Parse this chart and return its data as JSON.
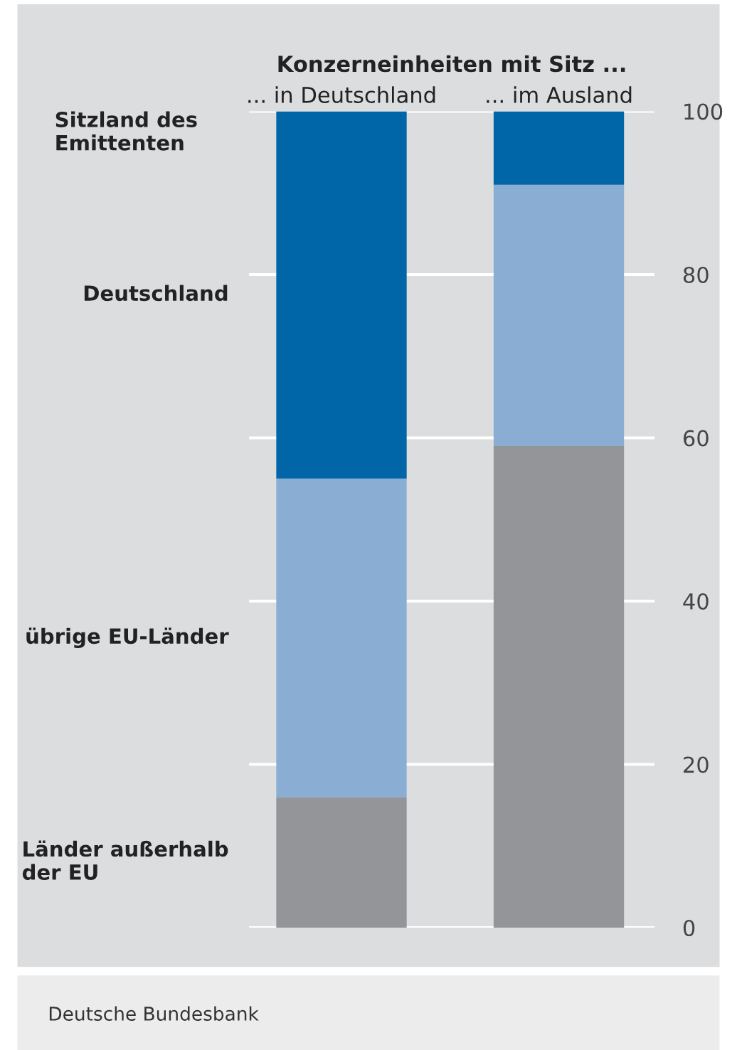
{
  "chart_data": {
    "type": "bar",
    "stacked": true,
    "title": "Konzerneinheiten mit Sitz ...",
    "legend_title": "Sitzland des Emittenten",
    "categories": [
      "... in Deutschland",
      "... im Ausland"
    ],
    "series": [
      {
        "name": "Länder außerhalb der EU",
        "color": "#939598",
        "values": [
          16,
          59
        ]
      },
      {
        "name": "übrige EU-Länder",
        "color": "#8aadd4",
        "values": [
          39,
          32
        ]
      },
      {
        "name": "Deutschland",
        "color": "#0066a8",
        "values": [
          45,
          9
        ]
      }
    ],
    "ylim": [
      0,
      100
    ],
    "yticks": [
      0,
      20,
      40,
      60,
      80,
      100
    ],
    "grid": "y",
    "annotations": [
      "Deutsche Bundesbank"
    ]
  }
}
